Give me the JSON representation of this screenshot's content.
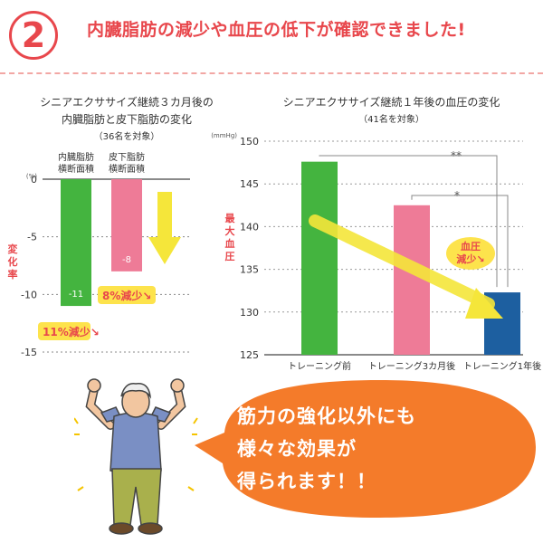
{
  "header": {
    "number": "2",
    "headline": "内臓脂肪の減少や血圧の低下が確認できました!"
  },
  "chart_data": [
    {
      "type": "bar",
      "title": "シニアエクササイズ継続３カ月後の",
      "title2": "内臓脂肪と皮下脂肪の変化",
      "subtitle": "（36名を対象）",
      "unit": "(%)",
      "ylabel": "変化率",
      "ylim": [
        -15,
        0
      ],
      "yticks": [
        0,
        -5,
        -10,
        -15
      ],
      "categories": [
        "内臓脂肪 横断面積",
        "皮下脂肪 横断面積"
      ],
      "category_lines": [
        [
          "内臓脂肪",
          "横断面積"
        ],
        [
          "皮下脂肪",
          "横断面積"
        ]
      ],
      "values": [
        -11,
        -8
      ],
      "value_labels": [
        "-11",
        "-8"
      ],
      "colors": [
        "#44b43f",
        "#ee7b97"
      ],
      "annotations": [
        "11%減少",
        "8%減少"
      ]
    },
    {
      "type": "bar",
      "title": "シニアエクササイズ継続１年後の血圧の変化",
      "subtitle": "（41名を対象）",
      "unit": "(mmHg)",
      "ylabel": "最大血圧",
      "ylim": [
        125,
        150
      ],
      "yticks": [
        150,
        145,
        140,
        135,
        130,
        125
      ],
      "categories": [
        "トレーニング前",
        "トレーニング3カ月後",
        "トレーニング1年後"
      ],
      "values": [
        147.6,
        142.5,
        132.3
      ],
      "colors": [
        "#44b43f",
        "#ee7b97",
        "#1d5fa0"
      ],
      "significance": [
        "**",
        "*"
      ],
      "annotation": [
        "血圧",
        "減少"
      ]
    }
  ],
  "callout": {
    "lines": [
      "筋力の強化以外にも",
      "様々な効果が",
      "得られます！！"
    ]
  },
  "colors": {
    "accent": "#e8474c",
    "bubble": "#f47b2a",
    "arrow": "#f5e63a"
  }
}
